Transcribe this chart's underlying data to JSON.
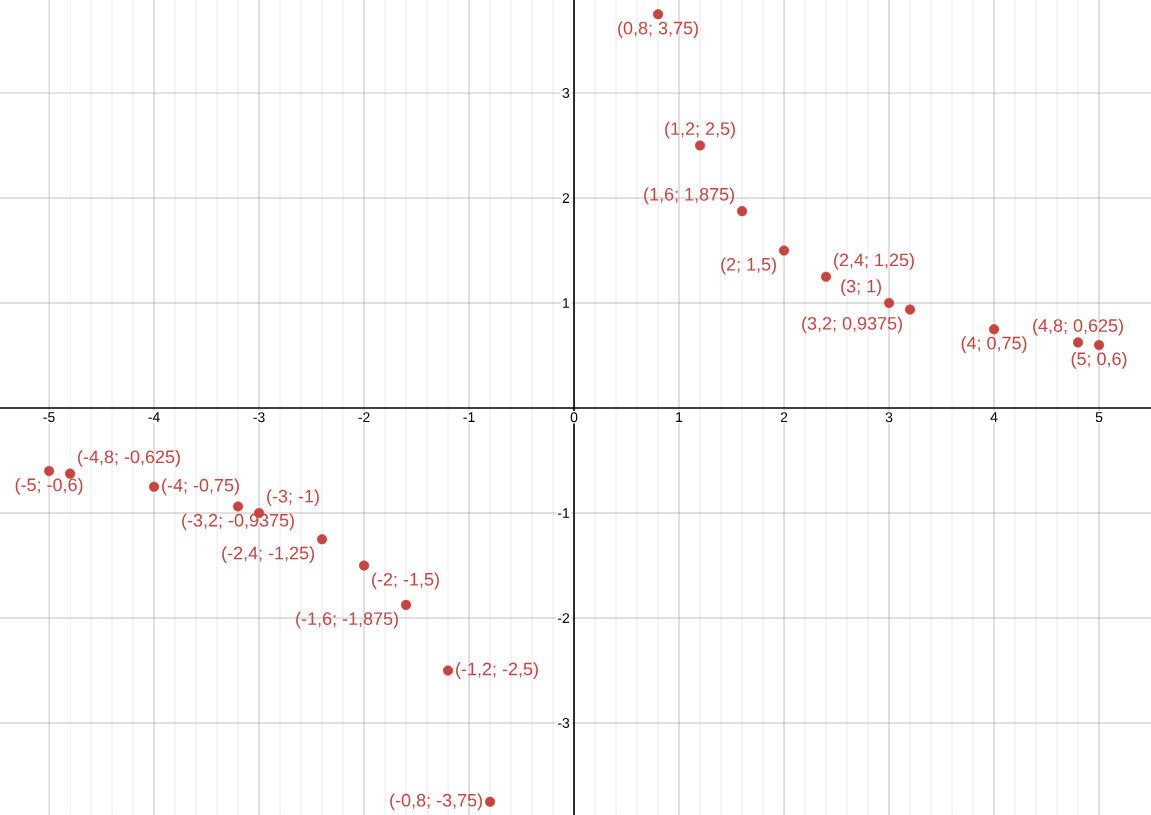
{
  "chart_data": {
    "type": "scatter",
    "x": [
      -5,
      -4.8,
      -4,
      -3.2,
      -3,
      -2.4,
      -2,
      -1.6,
      -1.2,
      -0.8,
      0.8,
      1.2,
      1.6,
      2,
      2.4,
      3,
      3.2,
      4,
      4.8,
      5
    ],
    "values": [
      -0.6,
      -0.625,
      -0.75,
      -0.9375,
      -1,
      -1.25,
      -1.5,
      -1.875,
      -2.5,
      -3.75,
      3.75,
      2.5,
      1.875,
      1.5,
      1.25,
      1,
      0.9375,
      0.75,
      0.625,
      0.6
    ],
    "value_labels": [
      "(-5; -0,6)",
      "(-4,8; -0,625)",
      "(-4; -0,75)",
      "(-3,2; -0,9375)",
      "(-3; -1)",
      "(-2,4; -1,25)",
      "(-2; -1,5)",
      "(-1,6; -1,875)",
      "(-1,2; -2,5)",
      "(-0,8; -3,75)",
      "(0,8; 3,75)",
      "(1,2; 2,5)",
      "(1,6; 1,875)",
      "(2; 1,5)",
      "(2,4; 1,25)",
      "(3; 1)",
      "(3,2; 0,9375)",
      "(4; 0,75)",
      "(4,8; 0,625)",
      "(5; 0,6)"
    ],
    "color": "#c74440",
    "marker": "circle",
    "grid": true,
    "xlim": [
      -5.467,
      5.495
    ],
    "ylim": [
      -3.876,
      3.886
    ],
    "xticks": [
      -5,
      -4,
      -3,
      -2,
      -1,
      0,
      1,
      2,
      3,
      4,
      5
    ],
    "yticks": [
      -3,
      -2,
      -1,
      1,
      2,
      3
    ]
  }
}
